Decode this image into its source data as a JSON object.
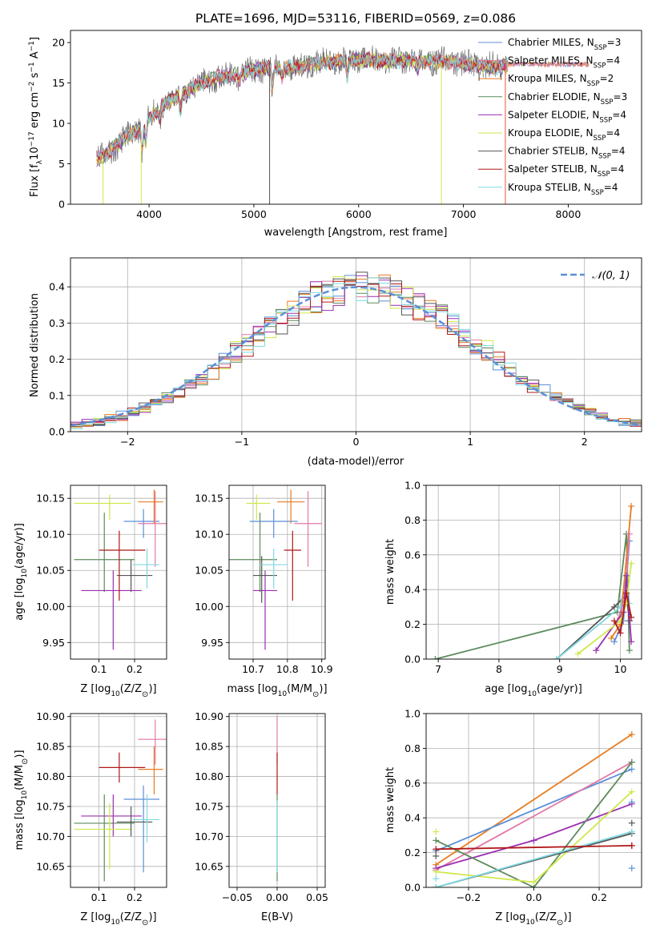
{
  "figure": {
    "title": "PLATE=1696, MJD=53116, FIBERID=0569, z=0.086"
  },
  "series_styles": [
    {
      "key": "chabrier_miles",
      "color": "#5b8fd9"
    },
    {
      "key": "salpeter_miles",
      "color": "#e377a8"
    },
    {
      "key": "kroupa_miles",
      "color": "#e87b1f"
    },
    {
      "key": "chabrier_elodie",
      "color": "#5c8a5c"
    },
    {
      "key": "salpeter_elodie",
      "color": "#9b2fb0"
    },
    {
      "key": "kroupa_elodie",
      "color": "#cfe84a"
    },
    {
      "key": "chabrier_stelib",
      "color": "#555555"
    },
    {
      "key": "salpeter_stelib",
      "color": "#b01818"
    },
    {
      "key": "kroupa_stelib",
      "color": "#7fd8e0"
    }
  ],
  "chart_data": [
    {
      "id": "spectrum",
      "type": "line",
      "title": "PLATE=1696, MJD=53116, FIBERID=0569, z=0.086",
      "xlabel": "wavelength [Angstrom, rest frame]",
      "ylabel": "Flux [f",
      "ylabel_parts": {
        "a": "Flux [f",
        "b": "λ",
        "c": "10",
        "d": "−17",
        "e": " erg cm",
        "f": "−2",
        "g": " s",
        "h": "−1",
        "i": " A",
        "j": "−1",
        "k": "]"
      },
      "xlim": [
        3250,
        8700
      ],
      "ylim": [
        0,
        21.5
      ],
      "xticks": [
        4000,
        5000,
        6000,
        7000,
        8000
      ],
      "yticks": [
        0,
        5,
        10,
        15,
        20
      ],
      "grid": false,
      "legend_position": "top-right",
      "legend": [
        {
          "text": "Chabrier MILES, N",
          "sub": "SSP",
          "tail": "=3",
          "color": "#5b8fd9"
        },
        {
          "text": "Salpeter MILES, N",
          "sub": "SSP",
          "tail": "=4",
          "color": "#e377a8"
        },
        {
          "text": "Kroupa MILES, N",
          "sub": "SSP",
          "tail": "=2",
          "color": "#e87b1f"
        },
        {
          "text": "Chabrier ELODIE, N",
          "sub": "SSP",
          "tail": "=3",
          "color": "#5c8a5c"
        },
        {
          "text": "Salpeter ELODIE, N",
          "sub": "SSP",
          "tail": "=4",
          "color": "#9b2fb0"
        },
        {
          "text": "Kroupa ELODIE, N",
          "sub": "SSP",
          "tail": "=4",
          "color": "#cfe84a"
        },
        {
          "text": "Chabrier STELIB, N",
          "sub": "SSP",
          "tail": "=4",
          "color": "#555555"
        },
        {
          "text": "Salpeter STELIB, N",
          "sub": "SSP",
          "tail": "=4",
          "color": "#b01818"
        },
        {
          "text": "Kroupa STELIB, N",
          "sub": "SSP",
          "tail": "=4",
          "color": "#7fd8e0"
        }
      ],
      "continuum": {
        "x": [
          3500,
          3650,
          3800,
          3950,
          4100,
          4300,
          4500,
          4700,
          4900,
          5100,
          5300,
          5500,
          5700,
          5900,
          6100,
          6300,
          6500,
          6700,
          6900,
          7100,
          7300,
          7420
        ],
        "y": [
          5.5,
          6.8,
          8.5,
          9.8,
          12.0,
          13.5,
          15.0,
          15.8,
          16.3,
          16.8,
          16.8,
          17.2,
          17.6,
          17.8,
          17.9,
          17.7,
          17.8,
          17.7,
          17.6,
          17.2,
          17.0,
          17.2
        ]
      },
      "absorption_dips": [
        {
          "x": 3934,
          "depth": 3.0
        },
        {
          "x": 3969,
          "depth": 2.5
        },
        {
          "x": 4102,
          "depth": 1.5
        },
        {
          "x": 4300,
          "depth": 2.0
        },
        {
          "x": 4861,
          "depth": 1.2
        },
        {
          "x": 5175,
          "depth": 2.5
        },
        {
          "x": 5270,
          "depth": 1.0
        },
        {
          "x": 5890,
          "depth": 2.0
        },
        {
          "x": 6563,
          "depth": 1.0
        }
      ],
      "spikes": [
        {
          "x": 3560,
          "ymin": 0,
          "ymax": 6.0
        },
        {
          "x": 3925,
          "ymin": 0,
          "ymax": 8.0
        },
        {
          "x": 5150,
          "ymin": 0,
          "ymax": 17.0
        },
        {
          "x": 6790,
          "ymin": 0,
          "ymax": 17.5
        },
        {
          "x": 7400,
          "ymin": 0,
          "ymax": 18.0
        }
      ]
    },
    {
      "id": "residuals",
      "type": "step-histogram",
      "xlabel": "(data-model)/error",
      "ylabel": "Normed distribution",
      "xlim": [
        -2.5,
        2.5
      ],
      "ylim": [
        0,
        0.48
      ],
      "xticks": [
        -2,
        -1,
        0,
        1,
        2
      ],
      "yticks": [
        0.0,
        0.1,
        0.2,
        0.3,
        0.4
      ],
      "grid": true,
      "legend_position": "top-right",
      "legend": [
        {
          "label": "𝒩(0, 1)",
          "color": "#5b8fd9",
          "style": "dashed"
        }
      ],
      "bin_width": 0.1
    },
    {
      "id": "z_vs_age",
      "type": "errorbar",
      "xlabel": "Z [log",
      "xlabel_parts": {
        "a": "Z [log",
        "b": "10",
        "c": "(Z/Z",
        "d": "⊙",
        "e": ")]"
      },
      "ylabel_parts": {
        "a": "age  [log",
        "b": "10",
        "c": "(age/yr)]"
      },
      "xlim": [
        0.02,
        0.29
      ],
      "ylim": [
        9.927,
        10.168
      ],
      "xticks": [
        0.1,
        0.2
      ],
      "yticks": [
        9.95,
        10.0,
        10.05,
        10.1,
        10.15
      ],
      "grid": true,
      "points": [
        {
          "c": "#5b8fd9",
          "x": 0.225,
          "xe": [
            0.17,
            0.27
          ],
          "y": 10.118,
          "ye": [
            10.095,
            10.135
          ]
        },
        {
          "c": "#e377a8",
          "x": 0.258,
          "xe": [
            0.21,
            0.29
          ],
          "y": 10.115,
          "ye": [
            10.055,
            10.16
          ]
        },
        {
          "c": "#e87b1f",
          "x": 0.255,
          "xe": [
            0.21,
            0.28
          ],
          "y": 10.145,
          "ye": [
            10.115,
            10.162
          ]
        },
        {
          "c": "#5c8a5c",
          "x": 0.115,
          "xe": [
            0.03,
            0.2
          ],
          "y": 10.065,
          "ye": [
            10.02,
            10.13
          ]
        },
        {
          "c": "#9b2fb0",
          "x": 0.14,
          "xe": [
            0.05,
            0.22
          ],
          "y": 10.022,
          "ye": [
            9.94,
            10.05
          ]
        },
        {
          "c": "#cfe84a",
          "x": 0.13,
          "xe": [
            0.03,
            0.19
          ],
          "y": 10.143,
          "ye": [
            10.12,
            10.155
          ]
        },
        {
          "c": "#555555",
          "x": 0.19,
          "xe": [
            0.15,
            0.25
          ],
          "y": 10.043,
          "ye": [
            10.02,
            10.065
          ]
        },
        {
          "c": "#b01818",
          "x": 0.157,
          "xe": [
            0.1,
            0.23
          ],
          "y": 10.078,
          "ye": [
            10.008,
            10.105
          ]
        },
        {
          "c": "#7fd8e0",
          "x": 0.235,
          "xe": [
            0.195,
            0.27
          ],
          "y": 10.058,
          "ye": [
            10.025,
            10.08
          ]
        }
      ]
    },
    {
      "id": "mass_vs_age",
      "type": "errorbar",
      "xlabel_parts": {
        "a": "mass [log",
        "b": "10",
        "c": "(M/M",
        "d": "⊙",
        "e": ")]"
      },
      "xlim": [
        10.63,
        10.91
      ],
      "ylim": [
        9.927,
        10.168
      ],
      "xticks": [
        10.7,
        10.8,
        10.9
      ],
      "yticks": [
        9.95,
        10.0,
        10.05,
        10.1,
        10.15
      ],
      "grid": true,
      "points": [
        {
          "c": "#5b8fd9",
          "x": 10.76,
          "xe": [
            10.69,
            10.83
          ],
          "y": 10.118,
          "ye": [
            10.095,
            10.135
          ]
        },
        {
          "c": "#e377a8",
          "x": 10.86,
          "xe": [
            10.82,
            10.9
          ],
          "y": 10.115,
          "ye": [
            10.055,
            10.16
          ]
        },
        {
          "c": "#e87b1f",
          "x": 10.81,
          "xe": [
            10.77,
            10.85
          ],
          "y": 10.145,
          "ye": [
            10.115,
            10.162
          ]
        },
        {
          "c": "#5c8a5c",
          "x": 10.72,
          "xe": [
            10.63,
            10.77
          ],
          "y": 10.065,
          "ye": [
            10.02,
            10.13
          ]
        },
        {
          "c": "#9b2fb0",
          "x": 10.735,
          "xe": [
            10.7,
            10.77
          ],
          "y": 10.022,
          "ye": [
            9.94,
            10.05
          ]
        },
        {
          "c": "#cfe84a",
          "x": 10.71,
          "xe": [
            10.68,
            10.75
          ],
          "y": 10.143,
          "ye": [
            10.12,
            10.155
          ]
        },
        {
          "c": "#555555",
          "x": 10.725,
          "xe": [
            10.7,
            10.77
          ],
          "y": 10.043,
          "ye": [
            10.005,
            10.07
          ]
        },
        {
          "c": "#b01818",
          "x": 10.815,
          "xe": [
            10.79,
            10.84
          ],
          "y": 10.078,
          "ye": [
            10.008,
            10.105
          ]
        },
        {
          "c": "#7fd8e0",
          "x": 10.76,
          "xe": [
            10.72,
            10.8
          ],
          "y": 10.058,
          "ye": [
            10.025,
            10.08
          ]
        }
      ]
    },
    {
      "id": "age_weights",
      "type": "line",
      "xlabel_parts": {
        "a": "age  [log",
        "b": "10",
        "c": "(age/yr)]"
      },
      "ylabel": "mass weight",
      "xlim": [
        6.8,
        10.35
      ],
      "ylim": [
        0,
        1
      ],
      "xticks": [
        7,
        8,
        9,
        10
      ],
      "yticks": [
        0.0,
        0.2,
        0.4,
        0.6,
        0.8,
        1.0
      ],
      "grid": true,
      "series": [
        {
          "c": "#5c8a5c",
          "x": [
            6.95,
            9.95,
            10.1,
            10.15
          ],
          "y": [
            0.0,
            0.27,
            0.72,
            0.05
          ]
        },
        {
          "c": "#555555",
          "x": [
            8.95,
            9.9,
            10.1,
            10.15
          ],
          "y": [
            0.0,
            0.3,
            0.37,
            0.22
          ]
        },
        {
          "c": "#7fd8e0",
          "x": [
            8.95,
            10.0,
            10.1,
            10.15
          ],
          "y": [
            0.0,
            0.3,
            0.48,
            0.32
          ]
        },
        {
          "c": "#e87b1f",
          "x": [
            9.85,
            10.0,
            10.18
          ],
          "y": [
            0.12,
            0.2,
            0.88
          ]
        },
        {
          "c": "#5b8fd9",
          "x": [
            9.9,
            10.05,
            10.15
          ],
          "y": [
            0.1,
            0.22,
            0.68
          ]
        },
        {
          "c": "#e377a8",
          "x": [
            9.95,
            10.08,
            10.15
          ],
          "y": [
            0.22,
            0.35,
            0.72
          ]
        },
        {
          "c": "#9b2fb0",
          "x": [
            9.6,
            10.05,
            10.1,
            10.18
          ],
          "y": [
            0.05,
            0.27,
            0.48,
            0.1
          ]
        },
        {
          "c": "#cfe84a",
          "x": [
            9.3,
            10.0,
            10.1,
            10.18
          ],
          "y": [
            0.03,
            0.22,
            0.32,
            0.55
          ]
        },
        {
          "c": "#b01818",
          "x": [
            9.9,
            10.0,
            10.1,
            10.18
          ],
          "y": [
            0.22,
            0.15,
            0.38,
            0.24
          ]
        }
      ]
    },
    {
      "id": "z_vs_mass",
      "type": "errorbar",
      "xlabel_parts": {
        "a": "Z [log",
        "b": "10",
        "c": "(Z/Z",
        "d": "⊙",
        "e": ")]"
      },
      "ylabel_parts": {
        "a": "mass [log",
        "b": "10",
        "c": "(M/M",
        "d": "⊙",
        "e": ")]"
      },
      "xlim": [
        0.02,
        0.29
      ],
      "ylim": [
        10.615,
        10.905
      ],
      "xticks": [
        0.1,
        0.2
      ],
      "yticks": [
        10.65,
        10.7,
        10.75,
        10.8,
        10.85,
        10.9
      ],
      "grid": true,
      "points": [
        {
          "c": "#5b8fd9",
          "x": 0.225,
          "xe": [
            0.17,
            0.27
          ],
          "y": 10.762,
          "ye": [
            10.64,
            10.785
          ]
        },
        {
          "c": "#e377a8",
          "x": 0.258,
          "xe": [
            0.21,
            0.29
          ],
          "y": 10.862,
          "ye": [
            10.82,
            10.895
          ]
        },
        {
          "c": "#e87b1f",
          "x": 0.255,
          "xe": [
            0.21,
            0.28
          ],
          "y": 10.812,
          "ye": [
            10.77,
            10.85
          ]
        },
        {
          "c": "#5c8a5c",
          "x": 0.115,
          "xe": [
            0.03,
            0.2
          ],
          "y": 10.722,
          "ye": [
            10.625,
            10.77
          ]
        },
        {
          "c": "#9b2fb0",
          "x": 0.14,
          "xe": [
            0.05,
            0.22
          ],
          "y": 10.734,
          "ye": [
            10.7,
            10.77
          ]
        },
        {
          "c": "#cfe84a",
          "x": 0.13,
          "xe": [
            0.03,
            0.19
          ],
          "y": 10.712,
          "ye": [
            10.645,
            10.755
          ]
        },
        {
          "c": "#555555",
          "x": 0.19,
          "xe": [
            0.15,
            0.25
          ],
          "y": 10.724,
          "ye": [
            10.7,
            10.75
          ]
        },
        {
          "c": "#b01818",
          "x": 0.157,
          "xe": [
            0.1,
            0.23
          ],
          "y": 10.815,
          "ye": [
            10.79,
            10.84
          ]
        },
        {
          "c": "#7fd8e0",
          "x": 0.235,
          "xe": [
            0.195,
            0.27
          ],
          "y": 10.728,
          "ye": [
            10.69,
            10.77
          ]
        }
      ]
    },
    {
      "id": "ebv_vs_mass",
      "type": "errorbar",
      "xlabel": "E(B-V)",
      "xlim": [
        -0.06,
        0.06
      ],
      "ylim": [
        10.615,
        10.905
      ],
      "xticks": [
        -0.05,
        0.0,
        0.05
      ],
      "yticks": [
        10.65,
        10.7,
        10.75,
        10.8,
        10.85,
        10.9
      ],
      "grid": true,
      "points": [
        {
          "c": "#e377a8",
          "x": 0.0,
          "xe": [
            0,
            0
          ],
          "y": 10.862,
          "ye": [
            10.82,
            10.9
          ]
        },
        {
          "c": "#b01818",
          "x": 0.0,
          "xe": [
            0,
            0
          ],
          "y": 10.815,
          "ye": [
            10.77,
            10.84
          ]
        },
        {
          "c": "#5c8a5c",
          "x": 0.0,
          "xe": [
            0,
            0
          ],
          "y": 10.722,
          "ye": [
            10.625,
            10.77
          ]
        },
        {
          "c": "#7fd8e0",
          "x": 0.0,
          "xe": [
            0,
            0
          ],
          "y": 10.728,
          "ye": [
            10.64,
            10.76
          ]
        }
      ]
    },
    {
      "id": "z_weights",
      "type": "line",
      "xlabel_parts": {
        "a": "Z [log",
        "b": "10",
        "c": "(Z/Z",
        "d": "⊙",
        "e": ")]"
      },
      "ylabel": "mass weight",
      "xlim": [
        -0.33,
        0.33
      ],
      "ylim": [
        0,
        1
      ],
      "xticks": [
        -0.2,
        0.0,
        0.2
      ],
      "yticks": [
        0.0,
        0.2,
        0.4,
        0.6,
        0.8,
        1.0
      ],
      "grid": true,
      "series": [
        {
          "c": "#e87b1f",
          "x": [
            -0.3,
            0.3
          ],
          "y": [
            0.13,
            0.88
          ]
        },
        {
          "c": "#5b8fd9",
          "x": [
            -0.3,
            0.3
          ],
          "y": [
            0.21,
            0.68
          ]
        },
        {
          "c": "#e377a8",
          "x": [
            -0.3,
            0.3
          ],
          "y": [
            0.1,
            0.72
          ]
        },
        {
          "c": "#9b2fb0",
          "x": [
            -0.3,
            0.0,
            0.3
          ],
          "y": [
            0.11,
            0.27,
            0.48
          ]
        },
        {
          "c": "#5c8a5c",
          "x": [
            -0.3,
            0.0,
            0.3
          ],
          "y": [
            0.27,
            0.0,
            0.72
          ]
        },
        {
          "c": "#cfe84a",
          "x": [
            -0.3,
            0.0,
            0.3
          ],
          "y": [
            0.09,
            0.03,
            0.55
          ]
        },
        {
          "c": "#555555",
          "x": [
            -0.3,
            0.3
          ],
          "y": [
            0.0,
            0.31
          ]
        },
        {
          "c": "#7fd8e0",
          "x": [
            -0.3,
            0.3
          ],
          "y": [
            0.0,
            0.32
          ]
        },
        {
          "c": "#b01818",
          "x": [
            -0.3,
            0.3
          ],
          "y": [
            0.22,
            0.24
          ]
        }
      ],
      "markers": [
        {
          "c": "#cfe84a",
          "x": -0.3,
          "y": 0.32
        },
        {
          "c": "#7fd8e0",
          "x": -0.3,
          "y": 0.05
        },
        {
          "c": "#555555",
          "x": -0.3,
          "y": 0.18
        },
        {
          "c": "#5b8fd9",
          "x": 0.3,
          "y": 0.11
        },
        {
          "c": "#555555",
          "x": 0.3,
          "y": 0.37
        },
        {
          "c": "#5b8fd9",
          "x": 0.3,
          "y": 0.49
        },
        {
          "c": "#b01818",
          "x": 0.3,
          "y": 0.24
        }
      ]
    }
  ]
}
